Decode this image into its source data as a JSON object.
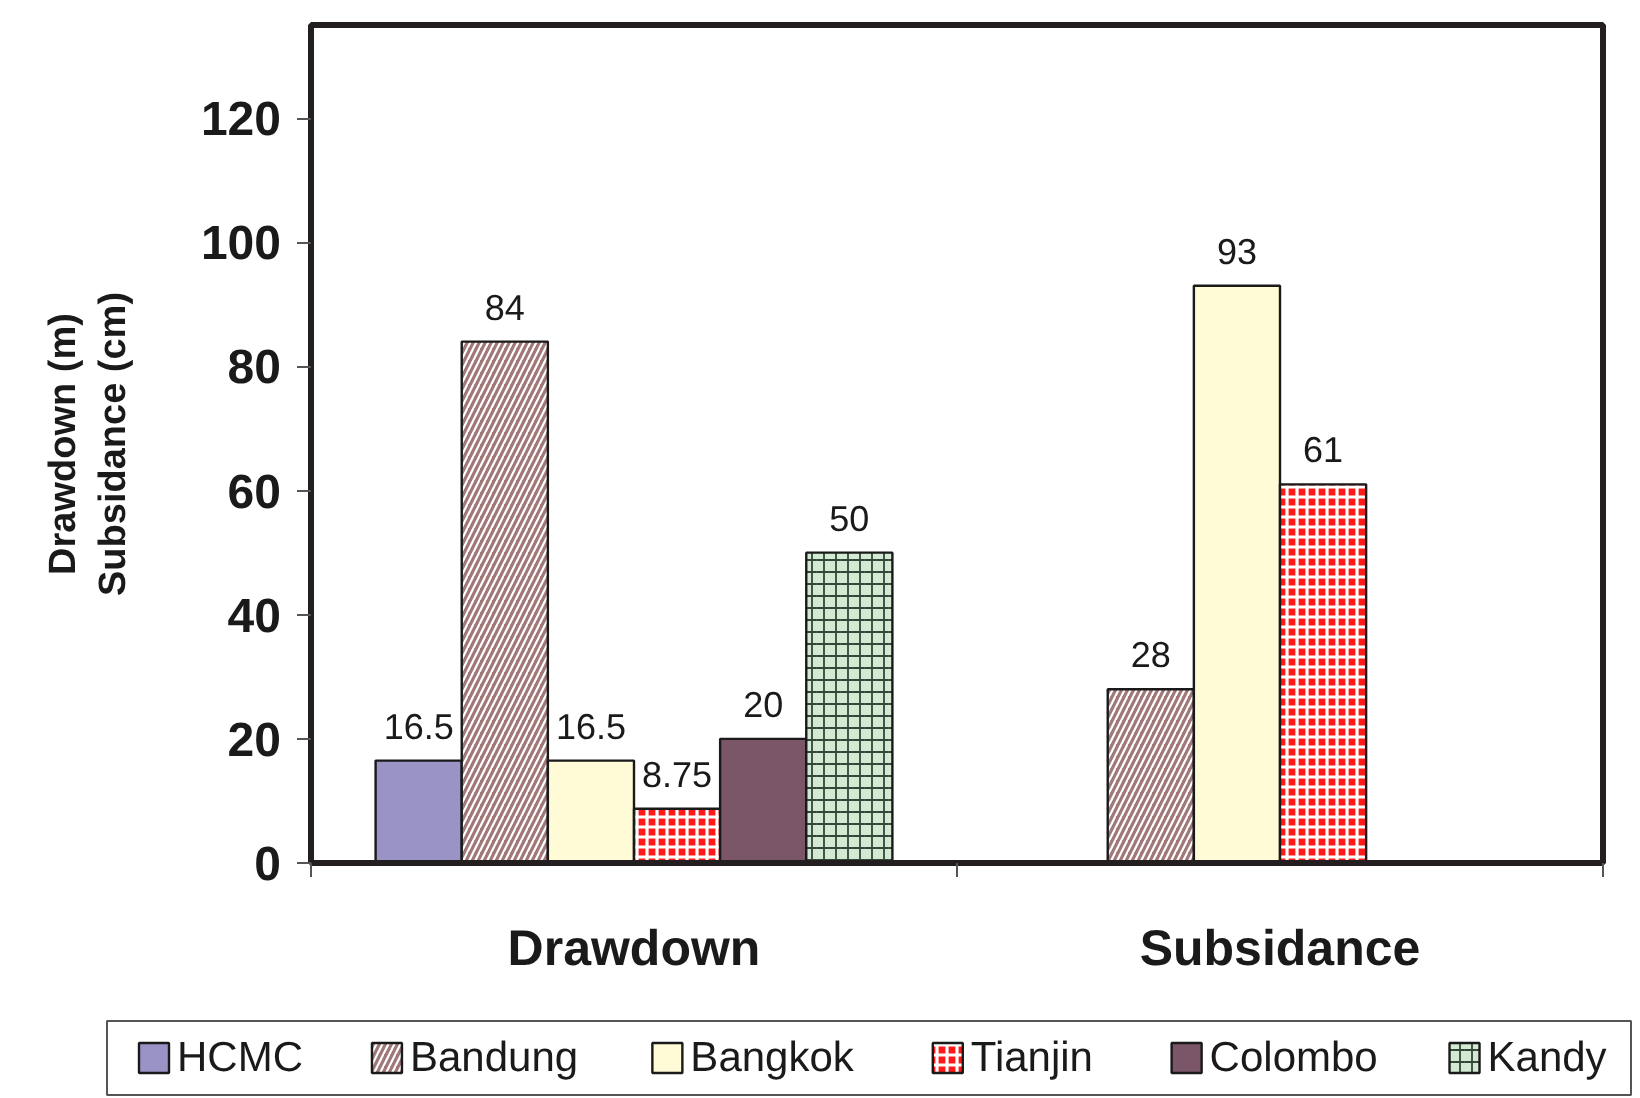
{
  "chart_data": {
    "type": "bar",
    "ylabel": "Drawdown (m)\nSubsidance (cm)",
    "categories": [
      "Drawdown",
      "Subsidance"
    ],
    "series": [
      {
        "name": "HCMC",
        "color": "#9a94c6",
        "values": [
          16.5,
          null
        ]
      },
      {
        "name": "Bandung",
        "color": "#a07878",
        "values": [
          84,
          28
        ]
      },
      {
        "name": "Bangkok",
        "color": "#fffbd6",
        "values": [
          16.5,
          93
        ]
      },
      {
        "name": "Tianjin",
        "color": "#ff1a1a",
        "values": [
          8.75,
          61
        ]
      },
      {
        "name": "Colombo",
        "color": "#7b5668",
        "values": [
          20,
          null
        ]
      },
      {
        "name": "Kandy",
        "color": "#d2e9d2",
        "values": [
          50,
          null
        ]
      }
    ],
    "ylim": [
      0,
      135
    ],
    "yticks": [
      0,
      20,
      40,
      60,
      80,
      100,
      120
    ],
    "data_labels": true,
    "legend": "bottom",
    "grid": false
  }
}
